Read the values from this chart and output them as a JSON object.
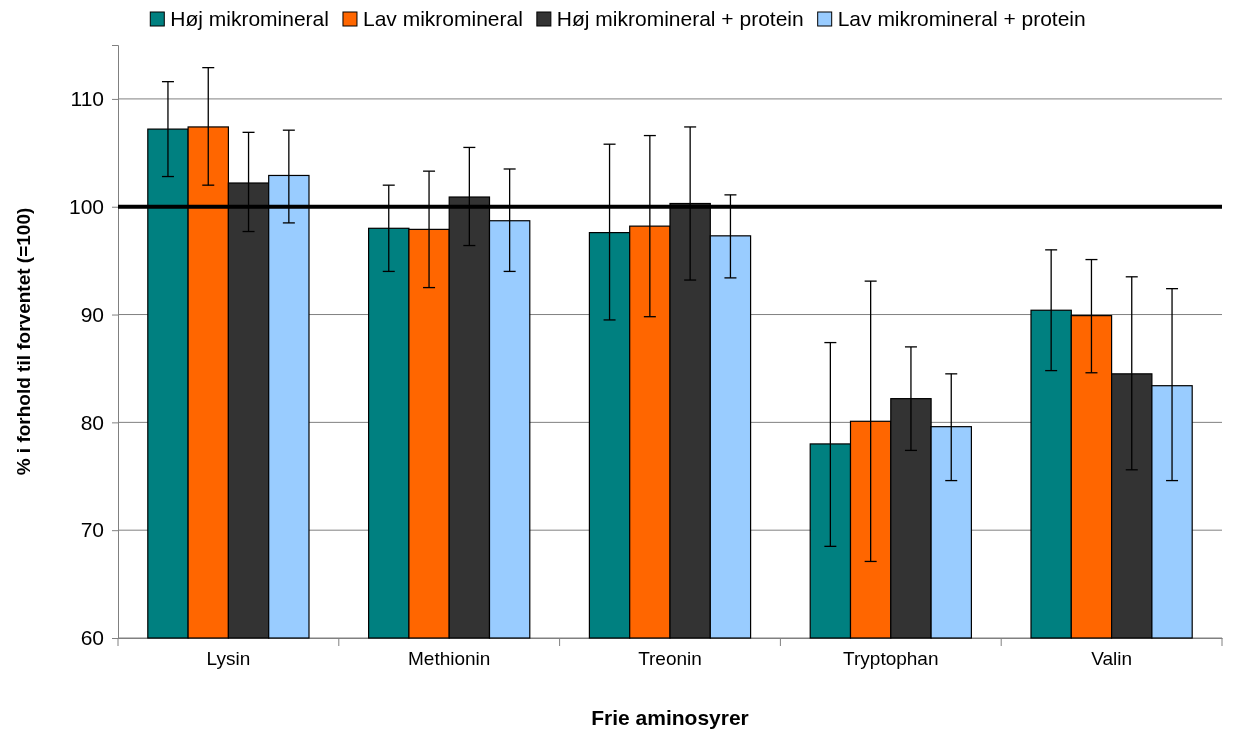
{
  "chart_data": {
    "type": "bar",
    "xlabel": "Frie aminosyrer",
    "ylabel": "% i forhold til forventet (=100)",
    "categories": [
      "Lysin",
      "Methionin",
      "Treonin",
      "Tryptophan",
      "Valin"
    ],
    "series": [
      {
        "name": "Høj mikromineral",
        "color": "#008080",
        "values": [
          107.2,
          98.0,
          97.6,
          78.0,
          90.4
        ],
        "errors": [
          [
            102.8,
            111.6
          ],
          [
            94.0,
            102.0
          ],
          [
            89.5,
            105.8
          ],
          [
            68.5,
            87.4
          ],
          [
            84.8,
            96.0
          ]
        ]
      },
      {
        "name": "Lav mikromineral",
        "color": "#ff6600",
        "values": [
          107.4,
          97.9,
          98.2,
          80.1,
          89.9
        ],
        "errors": [
          [
            102.0,
            112.9
          ],
          [
            92.5,
            103.3
          ],
          [
            89.8,
            106.6
          ],
          [
            67.1,
            93.1
          ],
          [
            84.6,
            95.1
          ]
        ]
      },
      {
        "name": "Høj mikromineral + protein",
        "color": "#333333",
        "values": [
          102.2,
          100.9,
          100.3,
          82.2,
          84.5
        ],
        "errors": [
          [
            97.7,
            106.9
          ],
          [
            96.4,
            105.5
          ],
          [
            93.2,
            107.4
          ],
          [
            77.4,
            87.0
          ],
          [
            75.6,
            93.5
          ]
        ]
      },
      {
        "name": "Lav mikromineral + protein",
        "color": "#99ccff",
        "values": [
          102.9,
          98.7,
          97.3,
          79.6,
          83.4
        ],
        "errors": [
          [
            98.5,
            107.1
          ],
          [
            94.0,
            103.5
          ],
          [
            93.4,
            101.1
          ],
          [
            74.6,
            84.5
          ],
          [
            74.6,
            92.4
          ]
        ]
      }
    ],
    "ylim": [
      60,
      115
    ],
    "yticks": [
      60,
      70,
      80,
      90,
      100,
      110
    ],
    "grid": "y",
    "legend": "top",
    "ref_lines": [
      {
        "axis": "y",
        "value": 100,
        "color": "#000000"
      }
    ]
  }
}
